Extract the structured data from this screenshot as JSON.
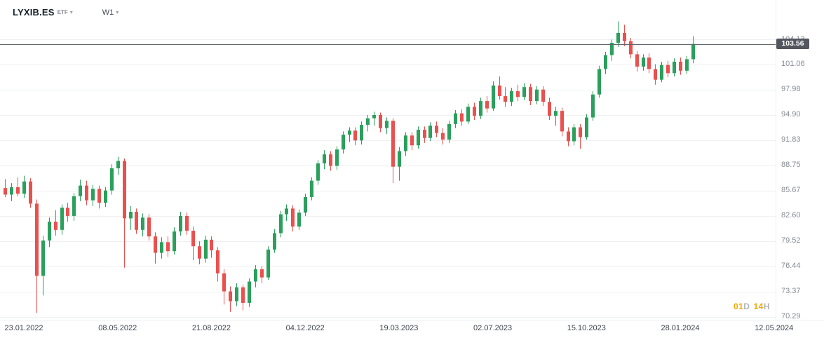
{
  "header": {
    "symbol": "LYXIB.ES",
    "instrument_type": "ETF",
    "timeframe": "W1"
  },
  "icons": {
    "caret_down": "▾"
  },
  "price_line": {
    "label": "103.56"
  },
  "countdown": {
    "value_days": "01",
    "unit_days": "D",
    "value_hours": "14",
    "unit_hours": "H"
  },
  "axes": {
    "y_labels": [
      "104.13",
      "101.06",
      "97.98",
      "94.90",
      "91.83",
      "88.75",
      "85.67",
      "82.60",
      "79.52",
      "76.44",
      "73.37",
      "70.29"
    ],
    "x_labels": [
      "23.01.2022",
      "08.05.2022",
      "21.08.2022",
      "04.12.2022",
      "19.03.2023",
      "02.07.2023",
      "15.10.2023",
      "28.01.2024",
      "12.05.2024"
    ]
  },
  "colors": {
    "up": "#2aa05c",
    "down": "#e9504e",
    "grid": "#eef0f3",
    "price_line": "#62666e",
    "badge_bg": "#53565f",
    "badge_text": "#ffffff",
    "countdown_num": "#f7a600",
    "countdown_unit": "#b0b4bc"
  },
  "chart_data": {
    "type": "candlestick",
    "symbol": "LYXIB.ES",
    "timeframe": "weekly (W1)",
    "current_price": 103.56,
    "ylim": [
      70.29,
      108.9
    ],
    "y_ticks": [
      104.13,
      101.06,
      97.98,
      94.9,
      91.83,
      88.75,
      85.67,
      82.6,
      79.52,
      76.44,
      73.37,
      70.29
    ],
    "x_tick_labels": [
      "23.01.2022",
      "08.05.2022",
      "21.08.2022",
      "04.12.2022",
      "19.03.2023",
      "02.07.2023",
      "15.10.2023",
      "28.01.2024",
      "12.05.2024"
    ],
    "x_tick_week_indices": [
      3,
      18,
      33,
      48,
      63,
      78,
      93,
      108,
      123
    ],
    "grid": "horizontal",
    "legend": "none",
    "candles_ohlc": [
      [
        86.0,
        87.1,
        84.9,
        85.2
      ],
      [
        85.2,
        86.6,
        84.4,
        86.1
      ],
      [
        86.1,
        87.3,
        85.0,
        85.3
      ],
      [
        85.3,
        87.5,
        84.8,
        86.8
      ],
      [
        86.8,
        87.2,
        83.6,
        84.1
      ],
      [
        84.1,
        84.6,
        70.8,
        75.3
      ],
      [
        75.3,
        80.2,
        72.9,
        79.6
      ],
      [
        79.6,
        82.4,
        78.8,
        81.9
      ],
      [
        81.9,
        83.3,
        80.2,
        80.9
      ],
      [
        80.9,
        84.0,
        80.3,
        83.6
      ],
      [
        83.6,
        84.2,
        81.9,
        82.6
      ],
      [
        82.6,
        85.4,
        82.0,
        85.0
      ],
      [
        85.0,
        87.0,
        84.4,
        86.3
      ],
      [
        86.3,
        86.9,
        83.9,
        84.5
      ],
      [
        84.5,
        86.4,
        83.8,
        85.9
      ],
      [
        85.9,
        86.3,
        83.5,
        84.2
      ],
      [
        84.2,
        86.1,
        83.7,
        85.7
      ],
      [
        85.7,
        88.9,
        85.2,
        88.4
      ],
      [
        88.4,
        89.8,
        87.6,
        89.3
      ],
      [
        89.3,
        89.6,
        76.3,
        82.3
      ],
      [
        82.3,
        83.8,
        80.9,
        83.1
      ],
      [
        83.1,
        83.5,
        80.4,
        80.9
      ],
      [
        80.9,
        82.9,
        80.1,
        82.4
      ],
      [
        82.4,
        82.8,
        79.6,
        80.1
      ],
      [
        80.1,
        80.6,
        76.8,
        78.1
      ],
      [
        78.1,
        80.0,
        77.4,
        79.4
      ],
      [
        79.4,
        80.1,
        77.6,
        78.3
      ],
      [
        78.3,
        81.2,
        77.9,
        80.7
      ],
      [
        80.7,
        83.1,
        80.2,
        82.6
      ],
      [
        82.6,
        83.0,
        80.3,
        80.8
      ],
      [
        80.8,
        81.3,
        77.2,
        78.9
      ],
      [
        78.9,
        79.5,
        76.7,
        77.4
      ],
      [
        77.4,
        80.2,
        76.9,
        79.7
      ],
      [
        79.7,
        80.1,
        77.5,
        78.4
      ],
      [
        78.4,
        78.8,
        74.6,
        75.6
      ],
      [
        75.6,
        76.1,
        71.8,
        73.4
      ],
      [
        73.4,
        74.0,
        70.9,
        72.2
      ],
      [
        72.2,
        74.4,
        71.6,
        73.9
      ],
      [
        73.9,
        74.2,
        71.1,
        72.0
      ],
      [
        72.0,
        75.0,
        71.5,
        74.6
      ],
      [
        74.6,
        76.6,
        73.9,
        76.1
      ],
      [
        76.1,
        76.5,
        74.4,
        75.1
      ],
      [
        75.1,
        78.9,
        74.8,
        78.5
      ],
      [
        78.5,
        81.0,
        78.1,
        80.5
      ],
      [
        80.5,
        83.2,
        80.0,
        82.8
      ],
      [
        82.8,
        84.0,
        82.0,
        83.5
      ],
      [
        83.5,
        83.9,
        80.7,
        81.3
      ],
      [
        81.3,
        83.4,
        80.9,
        83.0
      ],
      [
        83.0,
        85.3,
        82.6,
        84.9
      ],
      [
        84.9,
        87.3,
        84.5,
        86.9
      ],
      [
        86.9,
        89.4,
        86.4,
        89.0
      ],
      [
        89.0,
        90.6,
        88.3,
        90.1
      ],
      [
        90.1,
        90.5,
        88.1,
        88.7
      ],
      [
        88.7,
        91.1,
        88.2,
        90.7
      ],
      [
        90.7,
        92.9,
        90.2,
        92.5
      ],
      [
        92.5,
        93.4,
        91.6,
        93.0
      ],
      [
        93.0,
        93.4,
        91.2,
        91.8
      ],
      [
        91.8,
        94.1,
        91.3,
        93.7
      ],
      [
        93.7,
        94.9,
        92.9,
        94.5
      ],
      [
        94.5,
        95.3,
        93.6,
        94.9
      ],
      [
        94.9,
        95.2,
        92.8,
        93.3
      ],
      [
        93.3,
        94.6,
        92.6,
        94.2
      ],
      [
        94.2,
        94.5,
        86.6,
        88.6
      ],
      [
        88.6,
        91.0,
        86.9,
        90.5
      ],
      [
        90.5,
        92.8,
        89.9,
        92.4
      ],
      [
        92.4,
        92.8,
        90.6,
        91.2
      ],
      [
        91.2,
        93.5,
        90.8,
        93.1
      ],
      [
        93.1,
        93.5,
        91.5,
        92.1
      ],
      [
        92.1,
        94.0,
        91.7,
        93.6
      ],
      [
        93.6,
        94.1,
        92.2,
        92.7
      ],
      [
        92.7,
        93.3,
        91.3,
        91.9
      ],
      [
        91.9,
        94.2,
        91.5,
        93.8
      ],
      [
        93.8,
        95.5,
        93.3,
        95.1
      ],
      [
        95.1,
        95.6,
        93.6,
        94.1
      ],
      [
        94.1,
        96.3,
        93.8,
        95.9
      ],
      [
        95.9,
        96.4,
        94.3,
        94.8
      ],
      [
        94.8,
        97.0,
        94.4,
        96.6
      ],
      [
        96.6,
        97.2,
        95.2,
        95.7
      ],
      [
        95.7,
        99.0,
        95.4,
        98.5
      ],
      [
        98.5,
        99.6,
        96.8,
        97.2
      ],
      [
        97.2,
        98.3,
        95.9,
        96.5
      ],
      [
        96.5,
        98.2,
        96.0,
        97.8
      ],
      [
        97.8,
        98.6,
        96.6,
        97.1
      ],
      [
        97.1,
        98.8,
        96.7,
        98.3
      ],
      [
        98.3,
        98.7,
        96.1,
        96.6
      ],
      [
        96.6,
        98.4,
        96.2,
        98.0
      ],
      [
        98.0,
        98.4,
        96.0,
        96.5
      ],
      [
        96.5,
        97.0,
        94.3,
        94.8
      ],
      [
        94.8,
        95.9,
        93.6,
        95.4
      ],
      [
        95.4,
        95.8,
        92.3,
        92.9
      ],
      [
        92.9,
        93.4,
        91.1,
        91.7
      ],
      [
        91.7,
        93.8,
        91.2,
        93.4
      ],
      [
        93.4,
        93.8,
        90.8,
        92.2
      ],
      [
        92.2,
        95.0,
        91.9,
        94.6
      ],
      [
        94.6,
        97.8,
        94.2,
        97.4
      ],
      [
        97.4,
        100.9,
        97.0,
        100.5
      ],
      [
        100.5,
        102.6,
        99.9,
        102.2
      ],
      [
        102.2,
        104.1,
        101.5,
        103.7
      ],
      [
        103.7,
        106.3,
        103.2,
        104.9
      ],
      [
        104.9,
        105.9,
        103.3,
        103.9
      ],
      [
        103.9,
        104.3,
        101.8,
        102.3
      ],
      [
        102.3,
        102.7,
        100.2,
        100.8
      ],
      [
        100.8,
        102.3,
        100.3,
        101.9
      ],
      [
        101.9,
        102.4,
        100.0,
        100.5
      ],
      [
        100.5,
        101.1,
        98.6,
        99.2
      ],
      [
        99.2,
        101.4,
        98.9,
        101.0
      ],
      [
        101.0,
        101.5,
        99.5,
        100.0
      ],
      [
        100.0,
        101.8,
        99.6,
        101.4
      ],
      [
        101.4,
        101.9,
        99.8,
        100.3
      ],
      [
        100.3,
        102.1,
        99.9,
        101.7
      ],
      [
        101.7,
        104.5,
        101.2,
        103.56
      ]
    ]
  }
}
